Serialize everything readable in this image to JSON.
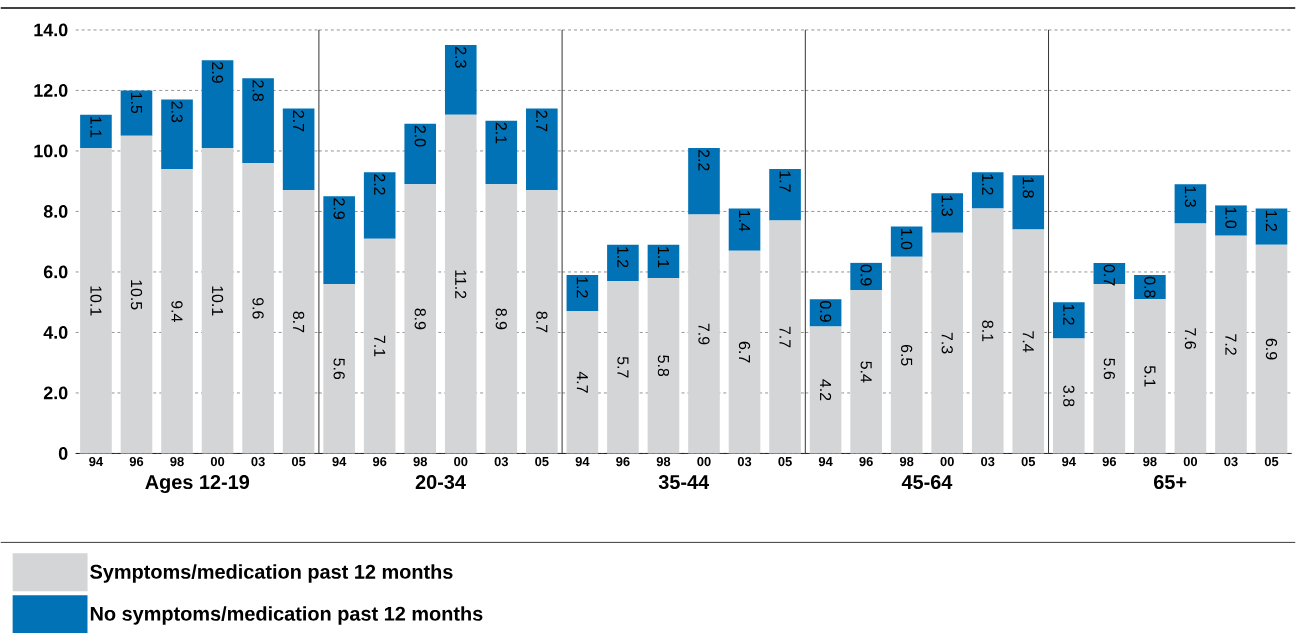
{
  "chart_data": [
    {
      "type": "bar",
      "stacked": true,
      "xlabel": "Ages 12-19",
      "categories": [
        "94",
        "96",
        "98",
        "00",
        "03",
        "05"
      ],
      "ylim": [
        0,
        14
      ],
      "yticks": [
        {
          "value": 0,
          "label": "0"
        },
        {
          "value": 2,
          "label": "2.0"
        },
        {
          "value": 4,
          "label": "4.0"
        },
        {
          "value": 6,
          "label": "6.0"
        },
        {
          "value": 8,
          "label": "8.0"
        },
        {
          "value": 10,
          "label": "10.0"
        },
        {
          "value": 12,
          "label": "12.0"
        },
        {
          "value": 14,
          "label": "14.0"
        }
      ],
      "grid": "y",
      "legend": "bottom",
      "series": [
        {
          "name": "Symptoms/medication past 12 months",
          "color": "#d3d5d6",
          "values": [
            10.1,
            10.5,
            9.4,
            10.1,
            9.6,
            8.7
          ],
          "value_labels": [
            "10.1",
            "10.5",
            "9.4",
            "10.1",
            "9.6",
            "8.7"
          ]
        },
        {
          "name": "No symptoms/medication past 12 months",
          "color": "#0072b5",
          "values": [
            1.1,
            1.5,
            2.3,
            2.9,
            2.8,
            2.7
          ],
          "value_labels": [
            "1.1",
            "1.5",
            "2.3",
            "2.9",
            "2.8",
            "2.7"
          ]
        }
      ]
    },
    {
      "type": "bar",
      "stacked": true,
      "xlabel": "20-34",
      "categories": [
        "94",
        "96",
        "98",
        "00",
        "03",
        "05"
      ],
      "ylim": [
        0,
        14
      ],
      "yticks": [
        0,
        2,
        4,
        6,
        8,
        10,
        12,
        14
      ],
      "grid": "y",
      "tick_labels": "x",
      "series": [
        {
          "color": "#d3d5d6",
          "values": [
            5.6,
            7.1,
            8.9,
            11.2,
            8.9,
            8.7
          ],
          "value_labels": [
            "5.6",
            "7.1",
            "8.9",
            "11.2",
            "8.9",
            "8.7"
          ]
        },
        {
          "color": "#0072b5",
          "values": [
            2.9,
            2.2,
            2.0,
            2.3,
            2.1,
            2.7
          ],
          "value_labels": [
            "2.9",
            "2.2",
            "2.0",
            "2.3",
            "2.1",
            "2.7"
          ]
        }
      ]
    },
    {
      "type": "bar",
      "stacked": true,
      "xlabel": "35-44",
      "categories": [
        "94",
        "96",
        "98",
        "00",
        "03",
        "05"
      ],
      "ylim": [
        0,
        14
      ],
      "yticks": [
        0,
        2,
        4,
        6,
        8,
        10,
        12,
        14
      ],
      "grid": "y",
      "tick_labels": "x",
      "series": [
        {
          "color": "#d3d5d6",
          "values": [
            4.7,
            5.7,
            5.8,
            7.9,
            6.7,
            7.7
          ],
          "value_labels": [
            "4.7",
            "5.7",
            "5.8",
            "7.9",
            "6.7",
            "7.7"
          ]
        },
        {
          "color": "#0072b5",
          "values": [
            1.2,
            1.2,
            1.1,
            2.2,
            1.4,
            1.7
          ],
          "value_labels": [
            "1.2",
            "1.2",
            "1.1",
            "2.2",
            "1.4",
            "1.7"
          ]
        }
      ]
    },
    {
      "type": "bar",
      "stacked": true,
      "xlabel": "45-64",
      "categories": [
        "94",
        "96",
        "98",
        "00",
        "03",
        "05"
      ],
      "ylim": [
        0,
        14
      ],
      "yticks": [
        0,
        2,
        4,
        6,
        8,
        10,
        12,
        14
      ],
      "grid": "y",
      "tick_labels": "x",
      "series": [
        {
          "color": "#d3d5d6",
          "values": [
            4.2,
            5.4,
            6.5,
            7.3,
            8.1,
            7.4
          ],
          "value_labels": [
            "4.2",
            "5.4",
            "6.5",
            "7.3",
            "8.1",
            "7.4"
          ]
        },
        {
          "color": "#0072b5",
          "values": [
            0.9,
            0.9,
            1.0,
            1.3,
            1.2,
            1.8
          ],
          "value_labels": [
            "0.9",
            "0.9",
            "1.0",
            "1.3",
            "1.2",
            "1.8"
          ]
        }
      ]
    },
    {
      "type": "bar",
      "stacked": true,
      "xlabel": "65+",
      "categories": [
        "94",
        "96",
        "98",
        "00",
        "03",
        "05"
      ],
      "ylim": [
        0,
        14
      ],
      "yticks": [
        0,
        2,
        4,
        6,
        8,
        10,
        12,
        14
      ],
      "grid": "y",
      "tick_labels": "x",
      "series": [
        {
          "color": "#d3d5d6",
          "values": [
            3.8,
            5.6,
            5.1,
            7.6,
            7.2,
            6.9
          ],
          "value_labels": [
            "3.8",
            "5.6",
            "5.1",
            "7.6",
            "7.2",
            "6.9"
          ]
        },
        {
          "color": "#0072b5",
          "values": [
            1.2,
            0.7,
            0.8,
            1.3,
            1.0,
            1.2
          ],
          "value_labels": [
            "1.2",
            "0.7",
            "0.8",
            "1.3",
            "1.0",
            "1.2"
          ]
        }
      ]
    }
  ]
}
